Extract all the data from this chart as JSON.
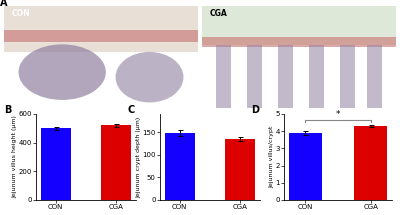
{
  "panel_B": {
    "categories": [
      "CON",
      "CGA"
    ],
    "values": [
      500,
      520
    ],
    "errors": [
      12,
      10
    ],
    "colors": [
      "#1400ff",
      "#dd0000"
    ],
    "ylabel": "Jejunum villus height (μm)",
    "ylim": [
      0,
      600
    ],
    "yticks": [
      0,
      200,
      400,
      600
    ],
    "label": "B"
  },
  "panel_C": {
    "categories": [
      "CON",
      "CGA"
    ],
    "values": [
      148,
      135
    ],
    "errors": [
      6,
      5
    ],
    "colors": [
      "#1400ff",
      "#dd0000"
    ],
    "ylabel": "Jejunum crypt depth (μm)",
    "ylim": [
      0,
      190
    ],
    "yticks": [
      0,
      50,
      100,
      150
    ],
    "label": "C"
  },
  "panel_D": {
    "categories": [
      "CON",
      "CGA"
    ],
    "values": [
      3.9,
      4.3
    ],
    "errors": [
      0.13,
      0.07
    ],
    "colors": [
      "#1400ff",
      "#dd0000"
    ],
    "ylabel": "Jejunum villus/crypt",
    "ylim": [
      0,
      5
    ],
    "yticks": [
      0,
      1,
      2,
      3,
      4,
      5
    ],
    "label": "D",
    "significance": "*"
  },
  "img_left_label": "CON",
  "img_right_label": "CGA",
  "image_label": "A",
  "bar_width": 0.5,
  "tick_fontsize": 5.0,
  "ylabel_fontsize": 4.5,
  "panel_label_fontsize": 7
}
